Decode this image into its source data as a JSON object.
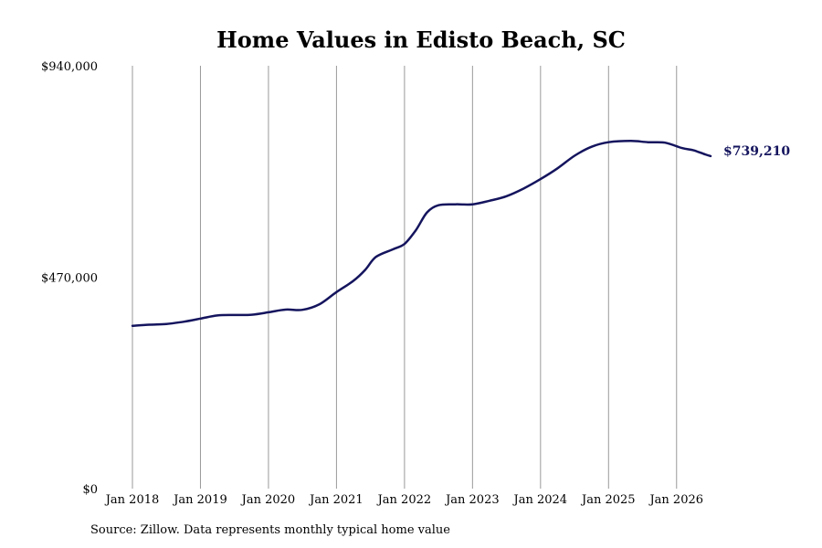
{
  "chart_data": {
    "type": "line",
    "title": "Home Values in Edisto Beach, SC",
    "y_ticks": [
      "$940,000",
      "$470,000",
      "$0"
    ],
    "y_tick_values": [
      940000,
      470000,
      0
    ],
    "ylim": [
      0,
      940000
    ],
    "x_ticks": [
      "Jan 2018",
      "Jan 2019",
      "Jan 2020",
      "Jan 2021",
      "Jan 2022",
      "Jan 2023",
      "Jan 2024",
      "Jan 2025",
      "Jan 2026"
    ],
    "x_tick_values": [
      2018,
      2019,
      2020,
      2021,
      2022,
      2023,
      2024,
      2025,
      2026
    ],
    "xlim": [
      2018,
      2026.5
    ],
    "grid": "vertical",
    "end_label": "$739,210",
    "line_color": "#14145e",
    "series": [
      {
        "points": [
          [
            2018.0,
            362000
          ],
          [
            2018.25,
            364500
          ],
          [
            2018.5,
            366000
          ],
          [
            2018.75,
            371000
          ],
          [
            2019.0,
            378000
          ],
          [
            2019.25,
            385000
          ],
          [
            2019.5,
            386000
          ],
          [
            2019.75,
            386500
          ],
          [
            2020.0,
            392000
          ],
          [
            2020.25,
            398000
          ],
          [
            2020.5,
            397500
          ],
          [
            2020.75,
            410000
          ],
          [
            2021.0,
            437000
          ],
          [
            2021.25,
            462000
          ],
          [
            2021.42,
            486000
          ],
          [
            2021.58,
            515000
          ],
          [
            2021.83,
            532000
          ],
          [
            2022.0,
            544000
          ],
          [
            2022.17,
            575000
          ],
          [
            2022.33,
            614000
          ],
          [
            2022.5,
            630000
          ],
          [
            2022.75,
            632000
          ],
          [
            2023.0,
            632000
          ],
          [
            2023.25,
            640000
          ],
          [
            2023.5,
            650000
          ],
          [
            2023.75,
            667000
          ],
          [
            2024.0,
            688000
          ],
          [
            2024.25,
            712000
          ],
          [
            2024.5,
            740000
          ],
          [
            2024.75,
            760000
          ],
          [
            2025.0,
            770000
          ],
          [
            2025.33,
            773000
          ],
          [
            2025.58,
            770000
          ],
          [
            2025.83,
            769000
          ],
          [
            2026.08,
            757000
          ],
          [
            2026.25,
            752000
          ],
          [
            2026.42,
            743000
          ],
          [
            2026.5,
            739210
          ]
        ]
      }
    ]
  },
  "footer": {
    "source": "Source: Zillow. Data represents monthly typical home value"
  }
}
